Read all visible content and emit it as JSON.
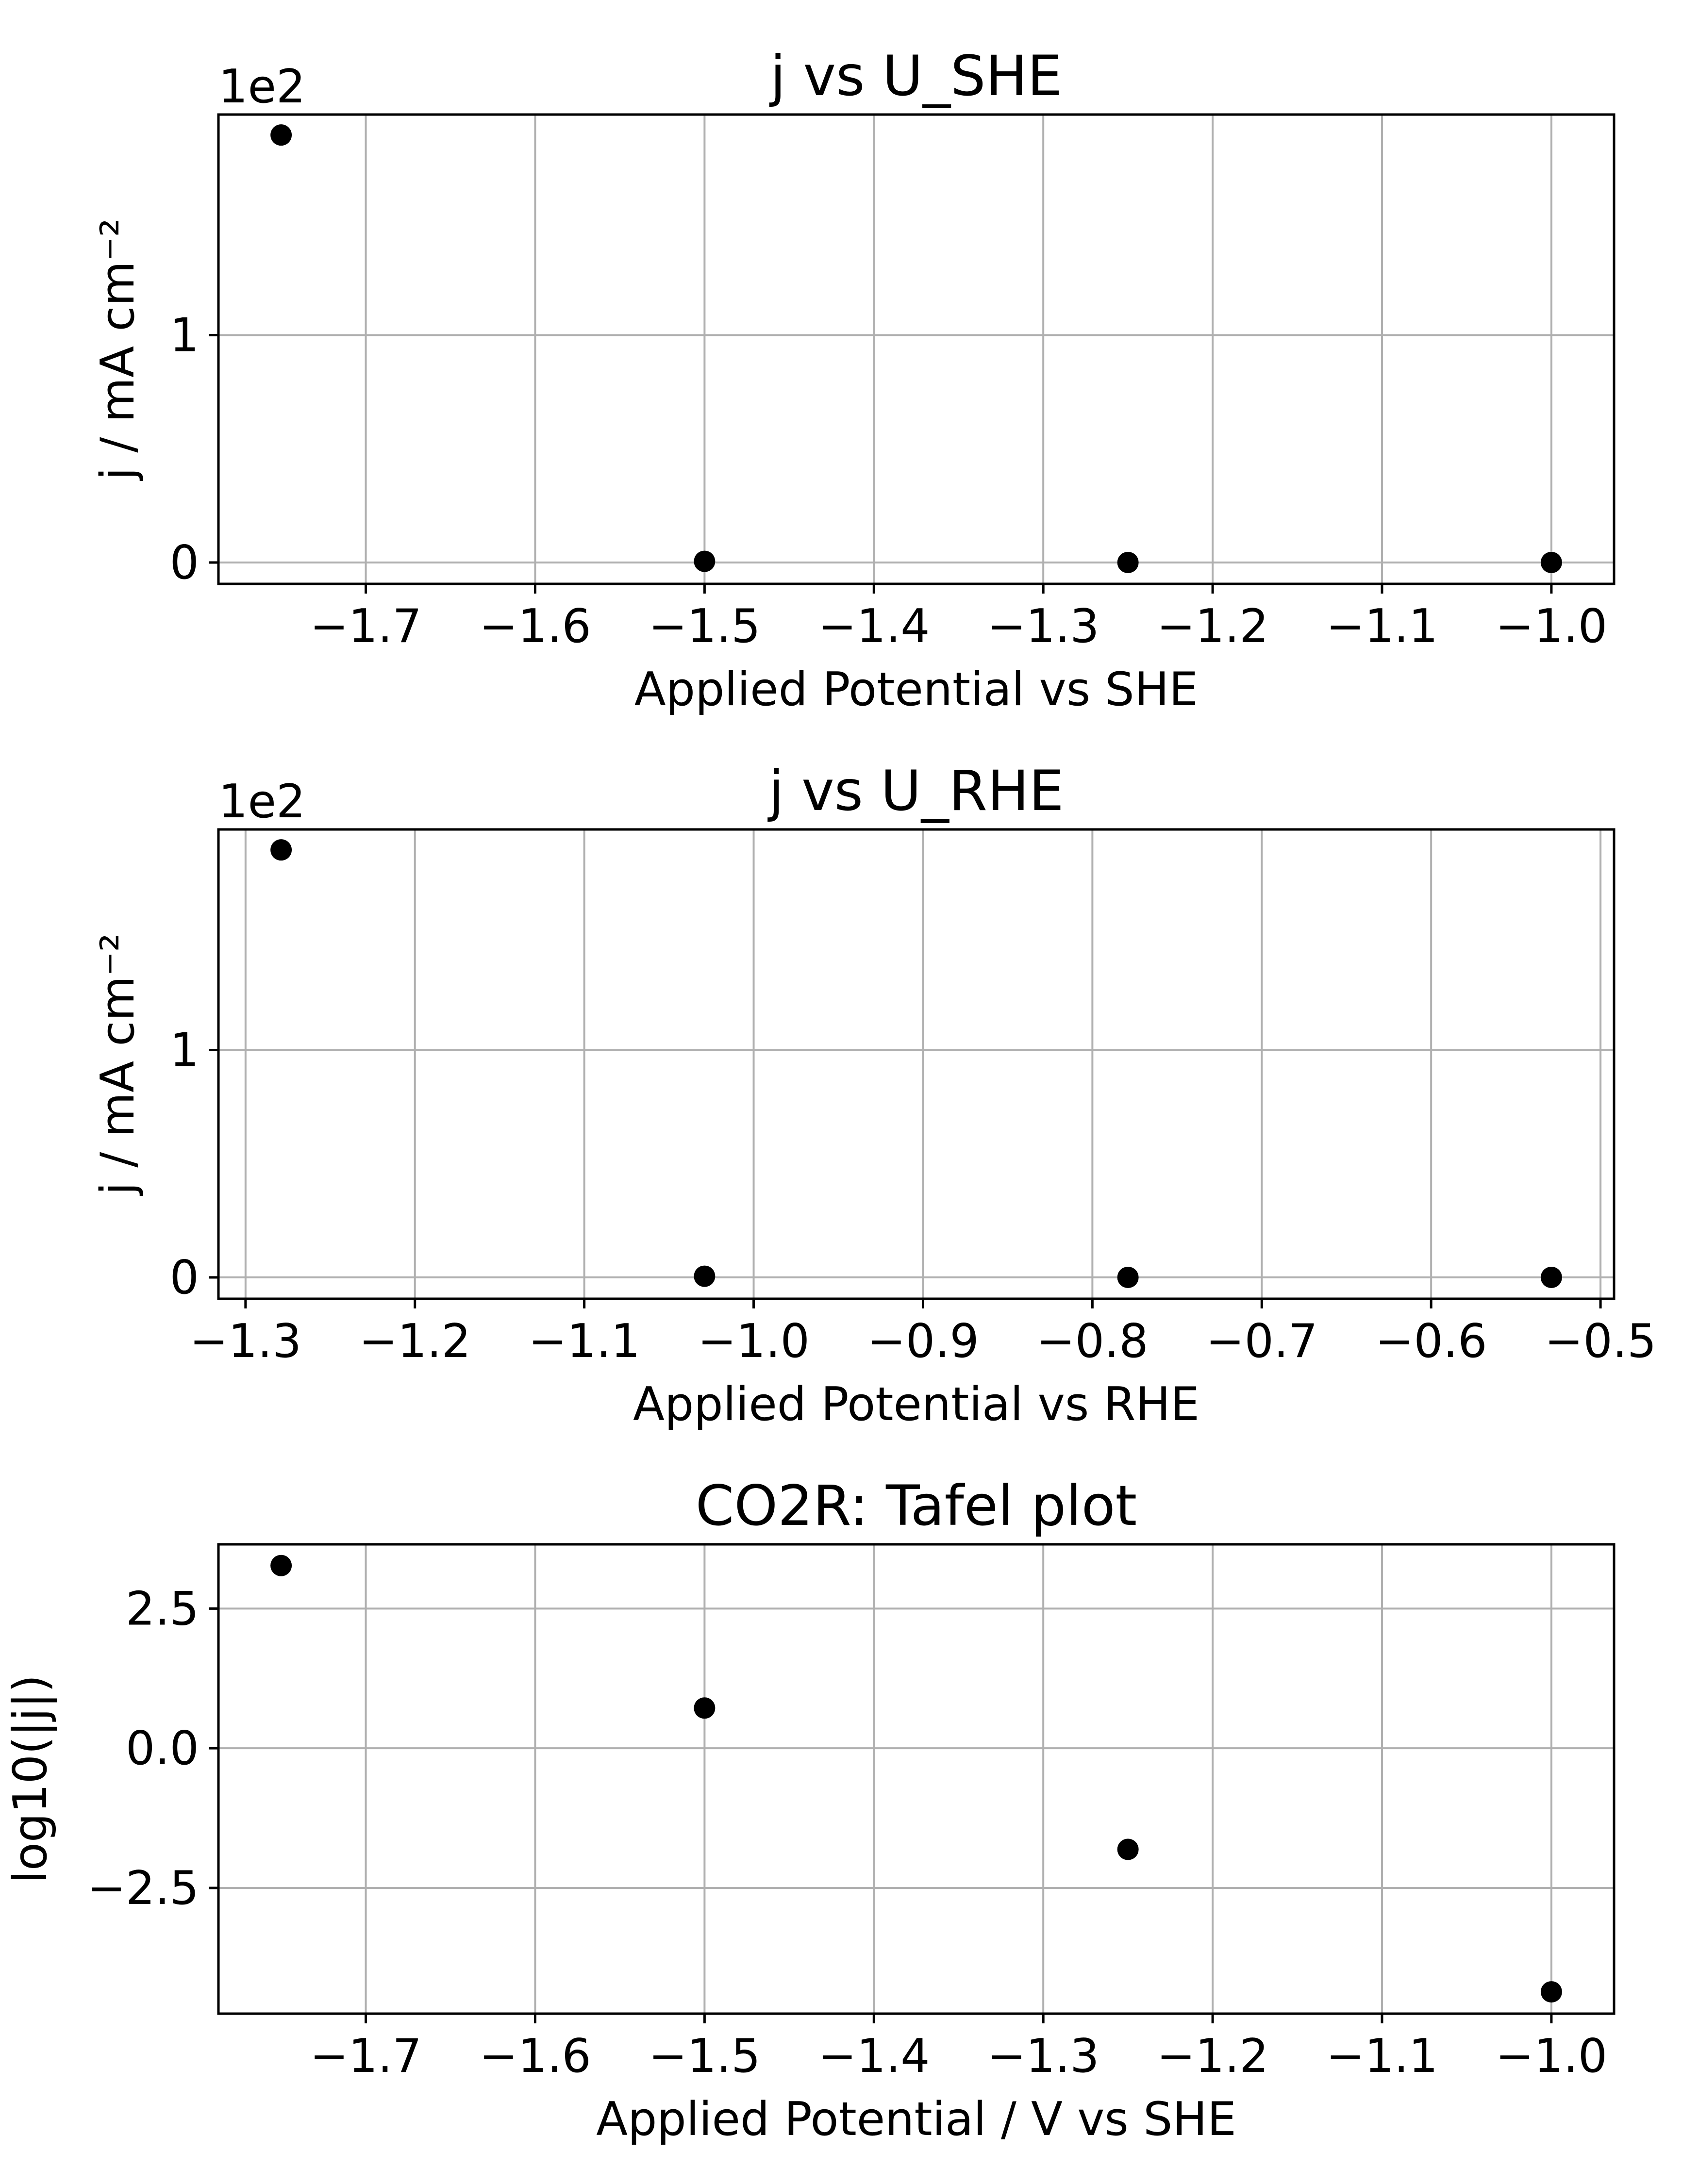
{
  "chart_data": [
    {
      "type": "scatter",
      "title": "j vs U_SHE",
      "xlabel": "Applied Potential vs SHE",
      "ylabel": "j / mA cm⁻²",
      "y_offset_label": "1e2",
      "xlim": [
        -1.787,
        -0.963
      ],
      "ylim": [
        -0.094,
        1.97
      ],
      "x_ticks": [
        -1.7,
        -1.6,
        -1.5,
        -1.4,
        -1.3,
        -1.2,
        -1.1,
        -1.0
      ],
      "x_tick_labels": [
        "−1.7",
        "−1.6",
        "−1.5",
        "−1.4",
        "−1.3",
        "−1.2",
        "−1.1",
        "−1.0"
      ],
      "y_ticks": [
        0,
        1
      ],
      "y_tick_labels": [
        "0",
        "1"
      ],
      "grid": true,
      "marker_color": "#000000",
      "x": [
        -1.75,
        -1.5,
        -1.25,
        -1.0
      ],
      "y": [
        1.88,
        0.005,
        0.0,
        0.0
      ]
    },
    {
      "type": "scatter",
      "title": "j vs U_RHE",
      "xlabel": "Applied Potential vs RHE",
      "ylabel": "j / mA cm⁻²",
      "y_offset_label": "1e2",
      "xlim": [
        -1.316,
        -0.492
      ],
      "ylim": [
        -0.094,
        1.97
      ],
      "x_ticks": [
        -1.3,
        -1.2,
        -1.1,
        -1.0,
        -0.9,
        -0.8,
        -0.7,
        -0.6,
        -0.5
      ],
      "x_tick_labels": [
        "−1.3",
        "−1.2",
        "−1.1",
        "−1.0",
        "−0.9",
        "−0.8",
        "−0.7",
        "−0.6",
        "−0.5"
      ],
      "y_ticks": [
        0,
        1
      ],
      "y_tick_labels": [
        "0",
        "1"
      ],
      "grid": true,
      "marker_color": "#000000",
      "x": [
        -1.279,
        -1.029,
        -0.779,
        -0.529
      ],
      "y": [
        1.88,
        0.005,
        0.0,
        0.0
      ]
    },
    {
      "type": "scatter",
      "title": "CO2R: Tafel plot",
      "xlabel": "Applied Potential / V vs SHE",
      "ylabel": "log10(|j|)",
      "xlim": [
        -1.787,
        -0.963
      ],
      "ylim": [
        -4.75,
        3.65
      ],
      "x_ticks": [
        -1.7,
        -1.6,
        -1.5,
        -1.4,
        -1.3,
        -1.2,
        -1.1,
        -1.0
      ],
      "x_tick_labels": [
        "−1.7",
        "−1.6",
        "−1.5",
        "−1.4",
        "−1.3",
        "−1.2",
        "−1.1",
        "−1.0"
      ],
      "y_ticks": [
        -2.5,
        0.0,
        2.5
      ],
      "y_tick_labels": [
        "−2.5",
        "0.0",
        "2.5"
      ],
      "grid": true,
      "marker_color": "#000000",
      "x": [
        -1.75,
        -1.5,
        -1.25,
        -1.0
      ],
      "y": [
        3.27,
        0.72,
        -1.81,
        -4.36
      ]
    }
  ]
}
